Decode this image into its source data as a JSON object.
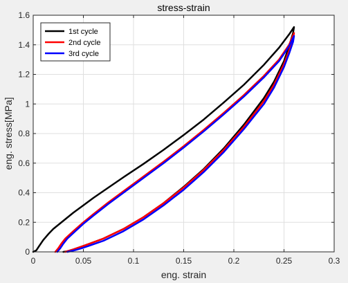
{
  "chart_data": {
    "type": "line",
    "title": "stress-strain",
    "xlabel": "eng. strain",
    "ylabel": "eng. stress[MPa]",
    "xlim": [
      0,
      0.3
    ],
    "ylim": [
      0,
      1.6
    ],
    "xticks": [
      0,
      0.05,
      0.1,
      0.15,
      0.2,
      0.25,
      0.3
    ],
    "xtick_labels": [
      "0",
      "0.05",
      "0.1",
      "0.15",
      "0.2",
      "0.25",
      "0.3"
    ],
    "yticks": [
      0,
      0.2,
      0.4,
      0.6,
      0.8,
      1.0,
      1.2,
      1.4,
      1.6
    ],
    "ytick_labels": [
      "0",
      "0.2",
      "0.4",
      "0.6",
      "0.8",
      "1",
      "1.2",
      "1.4",
      "1.6"
    ],
    "grid": true,
    "legend_position": "top-left",
    "series": [
      {
        "name": "1st cycle",
        "color": "#000000",
        "x": [
          0,
          0.003,
          0.006,
          0.01,
          0.015,
          0.02,
          0.03,
          0.04,
          0.05,
          0.06,
          0.075,
          0.09,
          0.11,
          0.13,
          0.15,
          0.17,
          0.19,
          0.21,
          0.23,
          0.245,
          0.255,
          0.26,
          0.259,
          0.255,
          0.25,
          0.24,
          0.23,
          0.21,
          0.19,
          0.17,
          0.15,
          0.13,
          0.11,
          0.09,
          0.07,
          0.05,
          0.04,
          0.033,
          0.03
        ],
        "y": [
          0,
          0.01,
          0.04,
          0.08,
          0.12,
          0.155,
          0.21,
          0.265,
          0.315,
          0.365,
          0.435,
          0.505,
          0.595,
          0.69,
          0.79,
          0.895,
          1.01,
          1.13,
          1.265,
          1.38,
          1.47,
          1.52,
          1.48,
          1.39,
          1.29,
          1.15,
          1.04,
          0.86,
          0.7,
          0.56,
          0.44,
          0.33,
          0.235,
          0.155,
          0.09,
          0.04,
          0.017,
          0.003,
          0
        ]
      },
      {
        "name": "2nd cycle",
        "color": "#ff0000",
        "x": [
          0.022,
          0.025,
          0.028,
          0.032,
          0.04,
          0.05,
          0.06,
          0.075,
          0.09,
          0.11,
          0.13,
          0.15,
          0.17,
          0.19,
          0.21,
          0.23,
          0.245,
          0.255,
          0.26,
          0.259,
          0.255,
          0.25,
          0.24,
          0.23,
          0.21,
          0.19,
          0.17,
          0.15,
          0.13,
          0.11,
          0.09,
          0.07,
          0.05,
          0.04,
          0.035,
          0.032
        ],
        "y": [
          0,
          0.025,
          0.055,
          0.09,
          0.14,
          0.2,
          0.255,
          0.335,
          0.41,
          0.51,
          0.61,
          0.715,
          0.825,
          0.94,
          1.06,
          1.19,
          1.3,
          1.4,
          1.48,
          1.44,
          1.36,
          1.27,
          1.13,
          1.02,
          0.845,
          0.69,
          0.555,
          0.435,
          0.33,
          0.235,
          0.155,
          0.09,
          0.04,
          0.017,
          0.006,
          0
        ]
      },
      {
        "name": "3rd cycle",
        "color": "#0000ff",
        "x": [
          0.024,
          0.027,
          0.03,
          0.034,
          0.042,
          0.05,
          0.06,
          0.075,
          0.09,
          0.11,
          0.13,
          0.15,
          0.17,
          0.19,
          0.21,
          0.23,
          0.245,
          0.255,
          0.26,
          0.259,
          0.255,
          0.25,
          0.24,
          0.23,
          0.21,
          0.19,
          0.17,
          0.15,
          0.13,
          0.11,
          0.09,
          0.07,
          0.05,
          0.042,
          0.037,
          0.034
        ],
        "y": [
          0,
          0.025,
          0.055,
          0.09,
          0.14,
          0.19,
          0.245,
          0.325,
          0.4,
          0.5,
          0.6,
          0.705,
          0.815,
          0.93,
          1.05,
          1.18,
          1.29,
          1.39,
          1.46,
          1.42,
          1.34,
          1.25,
          1.11,
          1.0,
          0.83,
          0.675,
          0.54,
          0.42,
          0.315,
          0.22,
          0.14,
          0.075,
          0.028,
          0.012,
          0.004,
          0
        ]
      }
    ]
  }
}
